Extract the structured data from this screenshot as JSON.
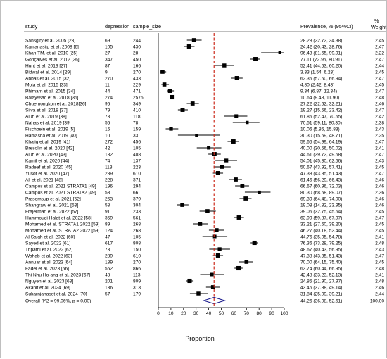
{
  "chart_data": {
    "type": "forest",
    "columns": {
      "study": "study",
      "depression": "depression",
      "sample_size": "sample_size",
      "estimate": "Prevalence, % (95%CI)",
      "weight_top": "%",
      "weight_bottom": "Weight"
    },
    "xlabel": "Proportion",
    "xlim": [
      0,
      100
    ],
    "xticks": [
      "0",
      "10",
      "20",
      "30",
      "40",
      "50",
      "60",
      "70",
      "80",
      "90",
      "100"
    ],
    "reference_line": 44.26,
    "studies": [
      {
        "study": "Sansgiry et al. 2005 [23]",
        "depression": "69",
        "sample_size": "244",
        "estimate": 28.28,
        "lower": 22.72,
        "upper": 34.38,
        "label": "28.28 (22.72, 34.38)",
        "weight": "2.45"
      },
      {
        "study": "Kanjanasilp et al. 2008 [6]",
        "depression": "105",
        "sample_size": "430",
        "estimate": 24.42,
        "lower": 20.43,
        "upper": 28.76,
        "label": "24.42 (20.43, 28.76)",
        "weight": "2.47"
      },
      {
        "study": "Khan TM. et al. 2010 [25]",
        "depression": "27",
        "sample_size": "28",
        "estimate": 96.43,
        "lower": 81.65,
        "upper": 99.91,
        "label": "96.43 (81.65, 99.91)",
        "weight": "2.22"
      },
      {
        "study": "Gonçalves et al. 2012 [26]",
        "depression": "347",
        "sample_size": "450",
        "estimate": 77.11,
        "lower": 72.95,
        "upper": 80.91,
        "label": "77.11 (72.95, 80.91)",
        "weight": "2.47"
      },
      {
        "study": "Hunt et al. 2013 [27]",
        "depression": "87",
        "sample_size": "166",
        "estimate": 52.41,
        "lower": 44.53,
        "upper": 60.2,
        "label": "52.41 (44.53, 60.20)",
        "weight": "2.44"
      },
      {
        "study": "Bidwal et al. 2014 [29]",
        "depression": "9",
        "sample_size": "270",
        "estimate": 3.33,
        "lower": 1.54,
        "upper": 6.23,
        "label": "3.33 (1.54, 6.23)",
        "weight": "2.45"
      },
      {
        "study": "Abbas et al. 2015 [32]",
        "depression": "270",
        "sample_size": "433",
        "estimate": 62.36,
        "lower": 57.6,
        "upper": 66.94,
        "label": "62.36 (57.60, 66.94)",
        "weight": "2.47"
      },
      {
        "study": "Moja et al. 2015 [33]",
        "depression": "11",
        "sample_size": "229",
        "estimate": 4.8,
        "lower": 2.42,
        "upper": 8.43,
        "label": "4.80 (2.42, 8.43)",
        "weight": "2.45"
      },
      {
        "study": "Phimarn et al. 2015 [34]",
        "depression": "44",
        "sample_size": "471",
        "estimate": 9.34,
        "lower": 6.87,
        "upper": 12.34,
        "label": "9.34 (6.87, 12.34)",
        "weight": "2.47"
      },
      {
        "study": "Balayssac et al. 2018 [35]",
        "depression": "274",
        "sample_size": "2575",
        "estimate": 10.64,
        "lower": 9.48,
        "upper": 11.9,
        "label": "10.64 (9.48, 11.90)",
        "weight": "2.48"
      },
      {
        "study": "Chuemongkon et al. 2018[36]",
        "depression": "95",
        "sample_size": "349",
        "estimate": 27.22,
        "lower": 22.62,
        "upper": 32.21,
        "label": "27.22 (22.62, 32.21)",
        "weight": "2.46"
      },
      {
        "study": "Silva et al. 2018 [37]",
        "depression": "79",
        "sample_size": "410",
        "estimate": 19.27,
        "lower": 15.56,
        "upper": 23.42,
        "label": "19.27 (15.56, 23.42)",
        "weight": "2.47"
      },
      {
        "study": "Aluh et al. 2019 [38]",
        "depression": "73",
        "sample_size": "118",
        "estimate": 61.86,
        "lower": 52.47,
        "upper": 70.65,
        "label": "61.86 (52.47, 70.65)",
        "weight": "2.42"
      },
      {
        "study": "Nahas et al. 2019 [39]",
        "depression": "55",
        "sample_size": "78",
        "estimate": 70.51,
        "lower": 59.11,
        "upper": 80.3,
        "label": "70.51 (59.11, 80.30)",
        "weight": "2.38"
      },
      {
        "study": "Fischbein et al. 2019 [5]",
        "depression": "16",
        "sample_size": "159",
        "estimate": 10.06,
        "lower": 5.86,
        "upper": 15.83,
        "label": "10.06 (5.86, 15.83)",
        "weight": "2.43"
      },
      {
        "study": "Hamasha et al. 2019 [40]",
        "depression": "10",
        "sample_size": "33",
        "estimate": 30.3,
        "lower": 15.59,
        "upper": 48.71,
        "label": "30.30 (15.59, 48.71)",
        "weight": "2.25"
      },
      {
        "study": "Khaliq et al. 2019 [41]",
        "depression": "272",
        "sample_size": "456",
        "estimate": 59.65,
        "lower": 54.99,
        "upper": 64.19,
        "label": "59.65 (54.99, 64.19)",
        "weight": "2.47"
      },
      {
        "study": "Bresolin et al. 2020 [42]",
        "depression": "42",
        "sample_size": "105",
        "estimate": 40.0,
        "lower": 30.56,
        "upper": 50.02,
        "label": "40.00 (30.56, 50.02)",
        "weight": "2.41"
      },
      {
        "study": "Aluh et al. 2020 [43]",
        "depression": "182",
        "sample_size": "408",
        "estimate": 44.61,
        "lower": 39.72,
        "upper": 49.58,
        "label": "44.61 (39.72, 49.58)",
        "weight": "2.47"
      },
      {
        "study": "Kamil et al. 2020 [44]",
        "depression": "74",
        "sample_size": "137",
        "estimate": 54.01,
        "lower": 45.3,
        "upper": 62.56,
        "label": "54.01 (45.30, 62.56)",
        "weight": "2.43"
      },
      {
        "study": "Radeef et al. 2020 [45]",
        "depression": "113",
        "sample_size": "223",
        "estimate": 50.67,
        "lower": 43.92,
        "upper": 57.41,
        "label": "50.67 (43.92, 57.41)",
        "weight": "2.45"
      },
      {
        "study": "Yusof et al. 2020 [47]",
        "depression": "289",
        "sample_size": "610",
        "estimate": 47.38,
        "lower": 43.35,
        "upper": 51.43,
        "label": "47.38 (43.35, 51.43)",
        "weight": "2.47"
      },
      {
        "study": "Ali et al. 2021 [48]",
        "depression": "228",
        "sample_size": "371",
        "estimate": 61.46,
        "lower": 56.29,
        "upper": 66.43,
        "label": "61.46 (56.29, 66.43)",
        "weight": "2.46"
      },
      {
        "study": "Campos et al. 2021 STRATA1 [49]",
        "depression": "196",
        "sample_size": "294",
        "estimate": 66.67,
        "lower": 60.96,
        "upper": 72.03,
        "label": "66.67 (60.96, 72.03)",
        "weight": "2.46"
      },
      {
        "study": "Campos et al. 2021 STRATA2 [49]",
        "depression": "53",
        "sample_size": "66",
        "estimate": 80.3,
        "lower": 68.68,
        "upper": 89.07,
        "label": "80.30 (68.68, 89.07)",
        "weight": "2.36"
      },
      {
        "study": "Prasomsup et al. 2021 [52]",
        "depression": "263",
        "sample_size": "379",
        "estimate": 69.39,
        "lower": 64.48,
        "upper": 74.0,
        "label": "69.39 (64.48, 74.00)",
        "weight": "2.46"
      },
      {
        "study": "Shangraw et al. 2021 [53]",
        "depression": "58",
        "sample_size": "304",
        "estimate": 19.08,
        "lower": 14.82,
        "upper": 23.95,
        "label": "19.08 (14.82, 23.95)",
        "weight": "2.46"
      },
      {
        "study": "Frajerman et al. 2022 [57]",
        "depression": "91",
        "sample_size": "233",
        "estimate": 39.06,
        "lower": 32.75,
        "upper": 45.64,
        "label": "39.06 (32.75, 45.64)",
        "weight": "2.45"
      },
      {
        "study": "Hammoudi Halat et al. 2022 [58]",
        "depression": "359",
        "sample_size": "561",
        "estimate": 63.99,
        "lower": 59.87,
        "upper": 67.97,
        "label": "63.99 (59.87, 67.97)",
        "weight": "2.47"
      },
      {
        "study": "Mohamed et al. STRATA1 2022 [59]",
        "depression": "89",
        "sample_size": "268",
        "estimate": 33.21,
        "lower": 27.6,
        "upper": 39.2,
        "label": "33.21 (27.60, 39.20)",
        "weight": "2.45"
      },
      {
        "study": "Mohamed et al. STRATA2 2022 [59]",
        "depression": "124",
        "sample_size": "268",
        "estimate": 46.27,
        "lower": 40.18,
        "upper": 52.44,
        "label": "46.27 (40.18, 52.44)",
        "weight": "2.45"
      },
      {
        "study": "Al Saigh et al. 2022 [60]",
        "depression": "47",
        "sample_size": "105",
        "estimate": 44.76,
        "lower": 35.05,
        "upper": 54.78,
        "label": "44.76 (35.05, 54.78)",
        "weight": "2.41"
      },
      {
        "study": "Sayed et al. 2022 [61]",
        "depression": "617",
        "sample_size": "808",
        "estimate": 76.36,
        "lower": 73.28,
        "upper": 79.25,
        "label": "76.36 (73.28, 79.25)",
        "weight": "2.48"
      },
      {
        "study": "Tripathi et al. 2022 [62]",
        "depression": "73",
        "sample_size": "150",
        "estimate": 48.67,
        "lower": 40.43,
        "upper": 56.95,
        "label": "48.67 (40.43, 56.95)",
        "weight": "2.43"
      },
      {
        "study": "Wahab et al. 2022 [63]",
        "depression": "289",
        "sample_size": "610",
        "estimate": 47.38,
        "lower": 43.35,
        "upper": 51.43,
        "label": "47.38 (43.35, 51.43)",
        "weight": "2.47"
      },
      {
        "study": "Annuar et al. 2023 [64]",
        "depression": "189",
        "sample_size": "270",
        "estimate": 70.0,
        "lower": 64.15,
        "upper": 75.4,
        "label": "70.00 (64.15, 75.40)",
        "weight": "2.45"
      },
      {
        "study": "Fadel et al. 2023 [66]",
        "depression": "552",
        "sample_size": "866",
        "estimate": 63.74,
        "lower": 60.44,
        "upper": 66.95,
        "label": "63.74 (60.44, 66.95)",
        "weight": "2.48"
      },
      {
        "study": "Thi Nhu Ho-ang et al. 2023 [67]",
        "depression": "48",
        "sample_size": "113",
        "estimate": 42.48,
        "lower": 33.23,
        "upper": 52.13,
        "label": "42.48 (33.23, 52.13)",
        "weight": "2.41"
      },
      {
        "study": "Nguyen et al. 2023 [68]",
        "depression": "201",
        "sample_size": "809",
        "estimate": 24.85,
        "lower": 21.9,
        "upper": 27.97,
        "label": "24.85 (21.90, 27.97)",
        "weight": "2.48"
      },
      {
        "study": "Akanit et al. 2024 [69]",
        "depression": "136",
        "sample_size": "313",
        "estimate": 43.45,
        "lower": 37.88,
        "upper": 49.14,
        "label": "43.45 (37.88, 49.14)",
        "weight": "2.46"
      },
      {
        "study": "Sukarnjanaset et al. 2024 [70]",
        "depression": "57",
        "sample_size": "179",
        "estimate": 31.84,
        "lower": 25.09,
        "upper": 39.21,
        "label": "31.84 (25.09, 39.21)",
        "weight": "2.44"
      }
    ],
    "overall": {
      "study": "Overall  (I^2 = 99.06%, p = 0.00)",
      "estimate": 44.26,
      "lower": 36.08,
      "upper": 52.61,
      "label": "44.26 (36.08, 52.61)",
      "weight": "100.00"
    },
    "colors": {
      "reference_line": "#cc2b1d",
      "diamond": "#1f1f8f",
      "markers": "#000000",
      "axis": "#000000"
    }
  }
}
